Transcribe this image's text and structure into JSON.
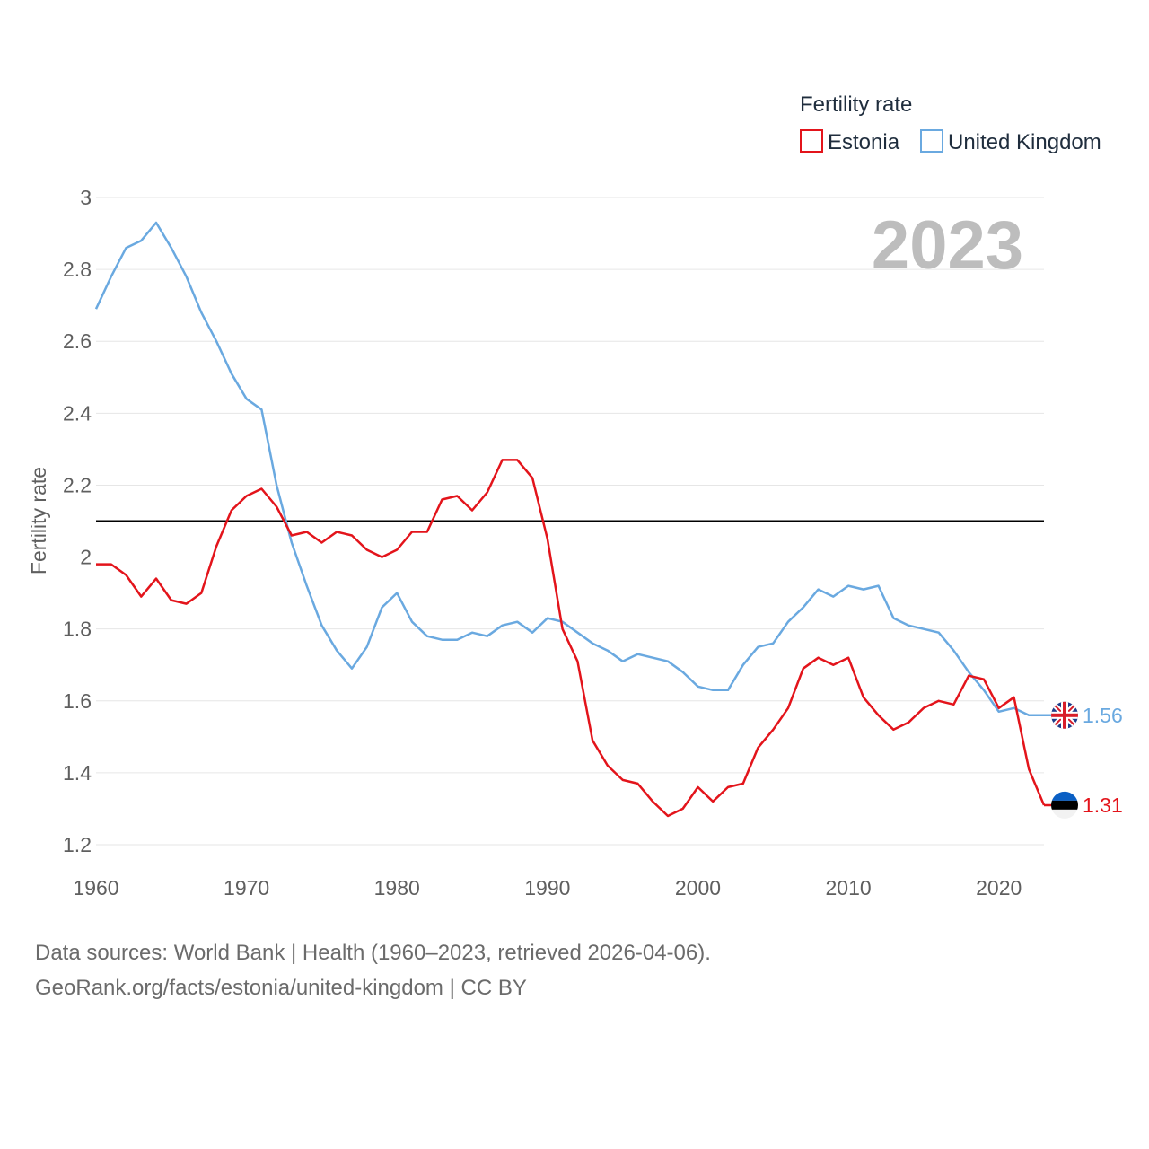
{
  "chart_data": {
    "type": "line",
    "legend_title": "Fertility rate",
    "ylabel": "Fertility rate",
    "year_label": "2023",
    "ylim": [
      1.2,
      3.0
    ],
    "yticks": [
      1.2,
      1.4,
      1.6,
      1.8,
      2,
      2.2,
      2.4,
      2.6,
      2.8,
      3
    ],
    "xlim": [
      1960,
      2023
    ],
    "xticks": [
      1960,
      1970,
      1980,
      1990,
      2000,
      2010,
      2020
    ],
    "reference_line": 2.1,
    "x": [
      1960,
      1961,
      1962,
      1963,
      1964,
      1965,
      1966,
      1967,
      1968,
      1969,
      1970,
      1971,
      1972,
      1973,
      1974,
      1975,
      1976,
      1977,
      1978,
      1979,
      1980,
      1981,
      1982,
      1983,
      1984,
      1985,
      1986,
      1987,
      1988,
      1989,
      1990,
      1991,
      1992,
      1993,
      1994,
      1995,
      1996,
      1997,
      1998,
      1999,
      2000,
      2001,
      2002,
      2003,
      2004,
      2005,
      2006,
      2007,
      2008,
      2009,
      2010,
      2011,
      2012,
      2013,
      2014,
      2015,
      2016,
      2017,
      2018,
      2019,
      2020,
      2021,
      2022,
      2023
    ],
    "series": [
      {
        "name": "Estonia",
        "color": "#e3141b",
        "end_label": "1.31",
        "values": [
          1.98,
          1.98,
          1.95,
          1.89,
          1.94,
          1.88,
          1.87,
          1.9,
          2.03,
          2.13,
          2.17,
          2.19,
          2.14,
          2.06,
          2.07,
          2.04,
          2.07,
          2.06,
          2.02,
          2.0,
          2.02,
          2.07,
          2.07,
          2.16,
          2.17,
          2.13,
          2.18,
          2.27,
          2.27,
          2.22,
          2.05,
          1.8,
          1.71,
          1.49,
          1.42,
          1.38,
          1.37,
          1.32,
          1.28,
          1.3,
          1.36,
          1.32,
          1.36,
          1.37,
          1.47,
          1.52,
          1.58,
          1.69,
          1.72,
          1.7,
          1.72,
          1.61,
          1.56,
          1.52,
          1.54,
          1.58,
          1.6,
          1.59,
          1.67,
          1.66,
          1.58,
          1.61,
          1.41,
          1.31
        ]
      },
      {
        "name": "United Kingdom",
        "color": "#6aa9e0",
        "end_label": "1.56",
        "values": [
          2.69,
          2.78,
          2.86,
          2.88,
          2.93,
          2.86,
          2.78,
          2.68,
          2.6,
          2.51,
          2.44,
          2.41,
          2.2,
          2.04,
          1.92,
          1.81,
          1.74,
          1.69,
          1.75,
          1.86,
          1.9,
          1.82,
          1.78,
          1.77,
          1.77,
          1.79,
          1.78,
          1.81,
          1.82,
          1.79,
          1.83,
          1.82,
          1.79,
          1.76,
          1.74,
          1.71,
          1.73,
          1.72,
          1.71,
          1.68,
          1.64,
          1.63,
          1.63,
          1.7,
          1.75,
          1.76,
          1.82,
          1.86,
          1.91,
          1.89,
          1.92,
          1.91,
          1.92,
          1.83,
          1.81,
          1.8,
          1.79,
          1.74,
          1.68,
          1.63,
          1.57,
          1.58,
          1.56,
          1.56
        ]
      }
    ]
  },
  "footer": {
    "line1": "Data sources: World Bank | Health (1960–2023, retrieved 2026-04-06).",
    "line2": "GeoRank.org/facts/estonia/united-kingdom | CC BY"
  }
}
